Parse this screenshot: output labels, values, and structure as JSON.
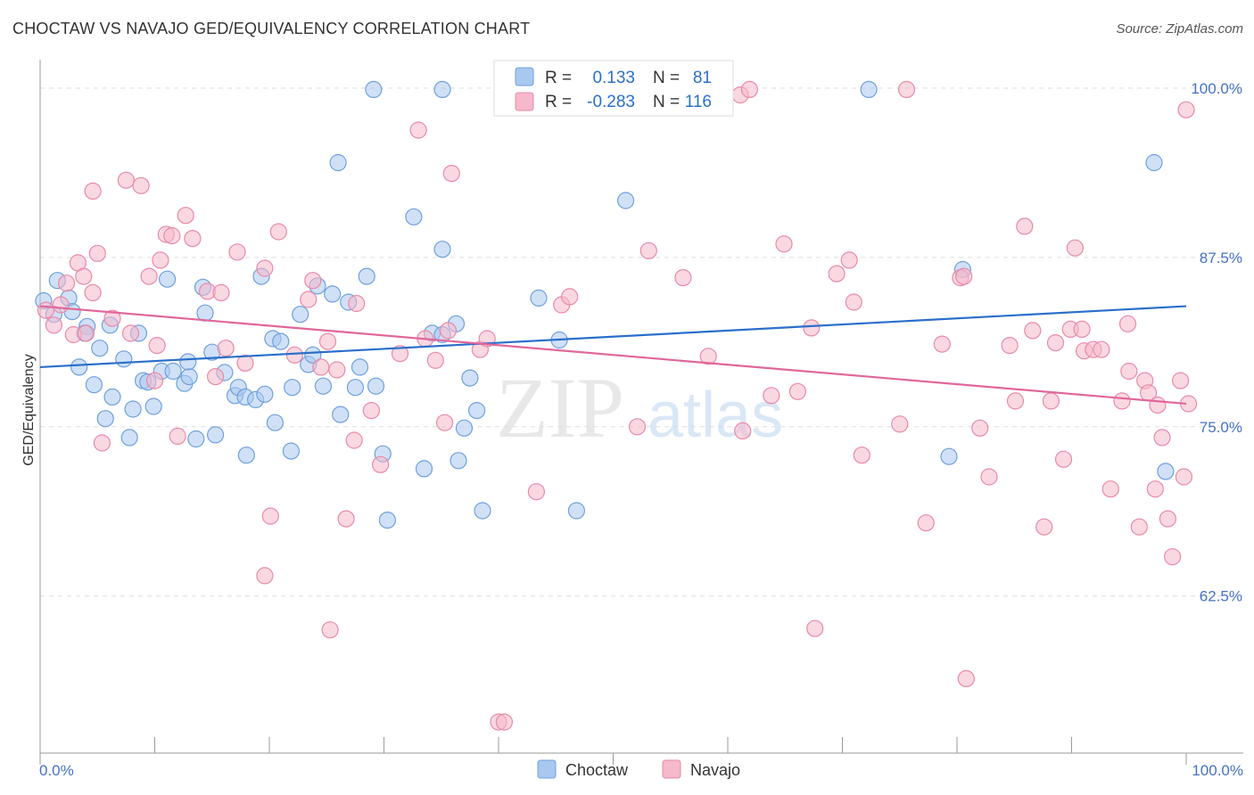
{
  "title": "CHOCTAW VS NAVAJO GED/EQUIVALENCY CORRELATION CHART",
  "source": "Source: ZipAtlas.com",
  "watermark": {
    "zip": "ZIP",
    "atlas": "atlas"
  },
  "colors": {
    "choctaw_fill": "#a9c8f0",
    "choctaw_stroke": "#6fa0dc",
    "choctaw_line": "#2a6fca",
    "navajo_fill": "#f6b8cb",
    "navajo_stroke": "#e88aa8",
    "navajo_line": "#e0679a",
    "tick_text": "#4472c4",
    "grid": "#dddddd"
  },
  "legend": {
    "choctaw": {
      "r_label": "R =",
      "r_value": "0.133",
      "n_label": "N =",
      "n_value": "81"
    },
    "navajo": {
      "r_label": "R =",
      "r_value": "-0.283",
      "n_label": "N =",
      "n_value": "116"
    }
  },
  "chart_data": {
    "type": "scatter",
    "title": "CHOCTAW VS NAVAJO GED/EQUIVALENCY CORRELATION CHART",
    "xlabel": "",
    "ylabel": "GED/Equivalency",
    "xlim": [
      0,
      100
    ],
    "ylim": [
      50.9,
      102.1
    ],
    "x_tick_labels": [
      "0.0%",
      "100.0%"
    ],
    "y_ticks": [
      62.5,
      75.0,
      87.5,
      100.0
    ],
    "y_tick_labels": [
      "62.5%",
      "75.0%",
      "87.5%",
      "100.0%"
    ],
    "legend_placement": "top-center",
    "grid": "horizontal dashed",
    "series": [
      {
        "name": "Choctaw",
        "trend": {
          "x": [
            0,
            100
          ],
          "y": [
            79.4,
            83.9
          ]
        },
        "points": [
          [
            0.3,
            84.3
          ],
          [
            1.5,
            85.8
          ],
          [
            2.5,
            84.5
          ],
          [
            1.2,
            83.3
          ],
          [
            2.8,
            83.5
          ],
          [
            4.1,
            82.4
          ],
          [
            3.9,
            81.9
          ],
          [
            5.2,
            80.8
          ],
          [
            3.4,
            79.4
          ],
          [
            6.1,
            82.5
          ],
          [
            7.3,
            80.0
          ],
          [
            8.6,
            81.9
          ],
          [
            11.1,
            85.9
          ],
          [
            14.2,
            85.3
          ],
          [
            14.4,
            83.4
          ],
          [
            15.0,
            80.5
          ],
          [
            9.0,
            78.4
          ],
          [
            10.6,
            79.1
          ],
          [
            11.6,
            79.1
          ],
          [
            12.6,
            78.2
          ],
          [
            13.0,
            78.7
          ],
          [
            12.9,
            79.8
          ],
          [
            4.7,
            78.1
          ],
          [
            6.3,
            77.2
          ],
          [
            5.7,
            75.6
          ],
          [
            8.1,
            76.3
          ],
          [
            9.9,
            76.5
          ],
          [
            9.4,
            78.3
          ],
          [
            7.8,
            74.2
          ],
          [
            13.6,
            74.1
          ],
          [
            15.3,
            74.4
          ],
          [
            16.1,
            79.0
          ],
          [
            17.0,
            77.3
          ],
          [
            17.3,
            77.9
          ],
          [
            17.9,
            77.2
          ],
          [
            18.8,
            77.0
          ],
          [
            19.6,
            77.4
          ],
          [
            20.3,
            81.5
          ],
          [
            19.3,
            86.1
          ],
          [
            21.0,
            81.3
          ],
          [
            22.0,
            77.9
          ],
          [
            22.7,
            83.3
          ],
          [
            23.4,
            79.6
          ],
          [
            23.8,
            80.3
          ],
          [
            24.2,
            85.4
          ],
          [
            24.7,
            78.0
          ],
          [
            25.5,
            84.8
          ],
          [
            26.2,
            75.9
          ],
          [
            26.9,
            84.2
          ],
          [
            27.5,
            77.9
          ],
          [
            27.9,
            79.4
          ],
          [
            28.5,
            86.1
          ],
          [
            29.3,
            78.0
          ],
          [
            29.9,
            73.0
          ],
          [
            30.3,
            68.1
          ],
          [
            18.0,
            72.9
          ],
          [
            20.5,
            75.3
          ],
          [
            21.9,
            73.2
          ],
          [
            29.1,
            99.9
          ],
          [
            32.6,
            90.5
          ],
          [
            33.5,
            71.9
          ],
          [
            34.2,
            81.9
          ],
          [
            35.1,
            88.1
          ],
          [
            36.3,
            82.6
          ],
          [
            35.1,
            99.9
          ],
          [
            35.1,
            81.8
          ],
          [
            36.5,
            72.5
          ],
          [
            37.0,
            74.9
          ],
          [
            37.5,
            78.6
          ],
          [
            38.1,
            76.2
          ],
          [
            38.6,
            68.8
          ],
          [
            43.5,
            84.5
          ],
          [
            45.3,
            81.4
          ],
          [
            46.8,
            68.8
          ],
          [
            51.1,
            91.7
          ],
          [
            72.3,
            99.9
          ],
          [
            80.5,
            86.6
          ],
          [
            79.3,
            72.8
          ],
          [
            97.2,
            94.5
          ],
          [
            98.2,
            71.7
          ],
          [
            26.0,
            94.5
          ]
        ]
      },
      {
        "name": "Navajo",
        "trend": {
          "x": [
            0,
            100
          ],
          "y": [
            83.9,
            76.7
          ]
        },
        "points": [
          [
            0.5,
            83.6
          ],
          [
            1.8,
            84.0
          ],
          [
            1.2,
            82.5
          ],
          [
            2.3,
            85.6
          ],
          [
            2.9,
            81.8
          ],
          [
            3.3,
            87.1
          ],
          [
            3.8,
            86.1
          ],
          [
            4.0,
            81.9
          ],
          [
            4.6,
            84.9
          ],
          [
            5.0,
            87.8
          ],
          [
            5.4,
            73.8
          ],
          [
            4.6,
            92.4
          ],
          [
            6.3,
            83.0
          ],
          [
            7.5,
            93.2
          ],
          [
            7.9,
            81.9
          ],
          [
            8.8,
            92.8
          ],
          [
            9.5,
            86.1
          ],
          [
            10.0,
            78.4
          ],
          [
            10.2,
            81.0
          ],
          [
            10.5,
            87.3
          ],
          [
            11.0,
            89.2
          ],
          [
            11.5,
            89.1
          ],
          [
            12.0,
            74.3
          ],
          [
            12.7,
            90.6
          ],
          [
            13.3,
            88.9
          ],
          [
            14.6,
            85.0
          ],
          [
            15.3,
            78.7
          ],
          [
            15.8,
            84.9
          ],
          [
            16.2,
            80.8
          ],
          [
            17.2,
            87.9
          ],
          [
            17.9,
            79.7
          ],
          [
            19.6,
            86.7
          ],
          [
            19.6,
            64.0
          ],
          [
            20.1,
            68.4
          ],
          [
            20.8,
            89.4
          ],
          [
            22.2,
            80.3
          ],
          [
            23.4,
            84.4
          ],
          [
            23.8,
            85.8
          ],
          [
            24.5,
            79.4
          ],
          [
            25.1,
            81.3
          ],
          [
            25.3,
            60.0
          ],
          [
            25.9,
            79.2
          ],
          [
            26.7,
            68.2
          ],
          [
            27.4,
            74.0
          ],
          [
            27.6,
            84.1
          ],
          [
            28.9,
            76.2
          ],
          [
            29.7,
            72.2
          ],
          [
            31.4,
            80.4
          ],
          [
            33.0,
            96.9
          ],
          [
            33.6,
            81.5
          ],
          [
            34.5,
            79.9
          ],
          [
            35.3,
            75.3
          ],
          [
            35.6,
            82.1
          ],
          [
            35.9,
            93.7
          ],
          [
            38.4,
            80.7
          ],
          [
            39.0,
            81.5
          ],
          [
            40.0,
            53.2
          ],
          [
            43.3,
            70.2
          ],
          [
            45.5,
            84.0
          ],
          [
            46.2,
            84.6
          ],
          [
            52.1,
            75.0
          ],
          [
            53.1,
            88.0
          ],
          [
            56.1,
            86.0
          ],
          [
            58.3,
            80.2
          ],
          [
            61.1,
            99.5
          ],
          [
            61.3,
            74.7
          ],
          [
            61.9,
            99.9
          ],
          [
            63.8,
            77.3
          ],
          [
            64.9,
            88.5
          ],
          [
            66.1,
            77.6
          ],
          [
            67.3,
            82.3
          ],
          [
            67.6,
            60.1
          ],
          [
            69.5,
            86.3
          ],
          [
            70.6,
            87.3
          ],
          [
            71.0,
            84.2
          ],
          [
            71.7,
            72.9
          ],
          [
            75.0,
            75.2
          ],
          [
            75.6,
            99.9
          ],
          [
            77.3,
            67.9
          ],
          [
            78.7,
            81.1
          ],
          [
            80.3,
            86.0
          ],
          [
            80.8,
            56.4
          ],
          [
            82.0,
            74.9
          ],
          [
            82.8,
            71.3
          ],
          [
            84.6,
            81.0
          ],
          [
            85.1,
            76.9
          ],
          [
            85.9,
            89.8
          ],
          [
            86.6,
            82.1
          ],
          [
            87.6,
            67.6
          ],
          [
            88.2,
            76.9
          ],
          [
            88.6,
            81.2
          ],
          [
            89.3,
            72.6
          ],
          [
            89.9,
            82.2
          ],
          [
            90.3,
            88.2
          ],
          [
            90.9,
            82.2
          ],
          [
            91.1,
            80.6
          ],
          [
            91.9,
            80.7
          ],
          [
            92.6,
            80.7
          ],
          [
            93.4,
            70.4
          ],
          [
            94.4,
            76.9
          ],
          [
            94.9,
            82.6
          ],
          [
            95.0,
            79.1
          ],
          [
            95.9,
            67.6
          ],
          [
            96.4,
            78.4
          ],
          [
            96.7,
            77.5
          ],
          [
            97.3,
            70.4
          ],
          [
            97.5,
            76.6
          ],
          [
            97.9,
            74.2
          ],
          [
            98.4,
            68.2
          ],
          [
            98.8,
            65.4
          ],
          [
            99.5,
            78.4
          ],
          [
            99.8,
            71.3
          ],
          [
            100.2,
            76.7
          ],
          [
            100.0,
            98.4
          ],
          [
            80.6,
            86.1
          ],
          [
            40.5,
            53.2
          ]
        ]
      }
    ]
  }
}
